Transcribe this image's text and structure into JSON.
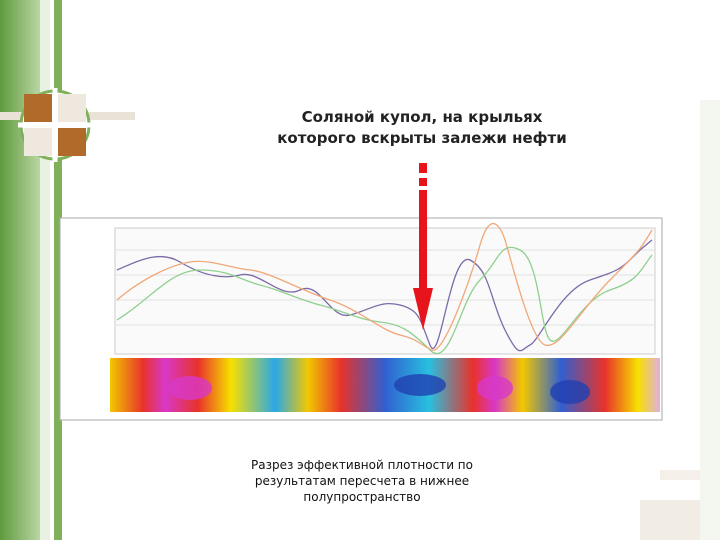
{
  "title": {
    "lines": [
      "Соляной купол, на крыльях",
      "которого вскрыты залежи нефти"
    ]
  },
  "caption": {
    "lines": [
      "Разрез эффективной плотности по",
      "результатам пересчета в нижнее",
      "полупространство"
    ]
  }
}
